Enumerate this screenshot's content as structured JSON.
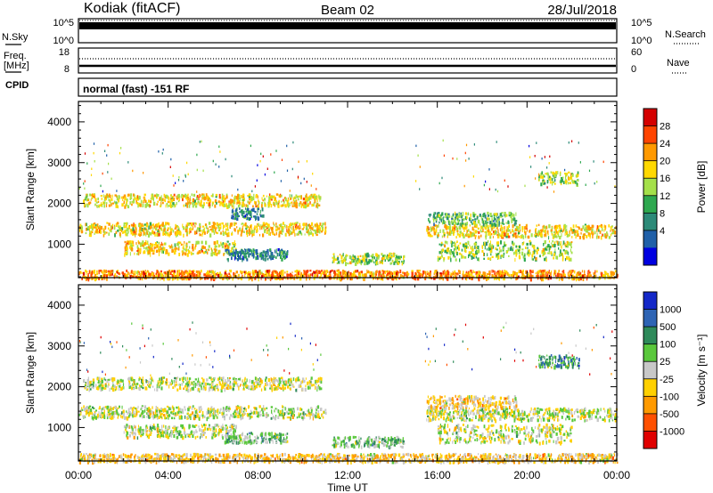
{
  "header": {
    "site": "Kodiak (fitACF)",
    "beam": "Beam 02",
    "date": "28/Jul/2018"
  },
  "status_panels": {
    "nsky_label": "N.Sky",
    "nsky_ticks": [
      "10^5",
      "10^0"
    ],
    "nsearch_label": "N.Search",
    "nsearch_ticks": [
      "10^5",
      "10^0"
    ],
    "freq_label_1": "Freq.",
    "freq_label_2": "[MHz]",
    "freq_ticks": [
      "18",
      "8"
    ],
    "nave_label": "Nave",
    "nave_ticks": [
      "60",
      "0"
    ],
    "cpid_label": "CPID",
    "cpid_value": "normal (fast) -151 RF"
  },
  "chart_data": [
    {
      "type": "heatmap",
      "quantity": "power",
      "ylabel": "Slant Range [km]",
      "ylim": [
        180,
        4500
      ],
      "yticks": [
        "4000",
        "3000",
        "2000",
        "1000"
      ],
      "xlabel": "Time UT",
      "xticks": [
        "00:00",
        "04:00",
        "08:00",
        "12:00",
        "16:00",
        "20:00",
        "00:00"
      ],
      "colorbar_label": "Power [dB]",
      "colorbar_ticks": [
        "28",
        "24",
        "20",
        "16",
        "12",
        "8",
        "4"
      ],
      "colorbar_colors": [
        "#d40000",
        "#ff4400",
        "#ff9900",
        "#ffd800",
        "#a4e04a",
        "#2ea84f",
        "#2c8a78",
        "#2060a8",
        "#0000e0"
      ],
      "echo_regions": [
        {
          "t_start": 0.2,
          "t_end": 10.8,
          "r_start": 1950,
          "r_end": 2250,
          "level": 3
        },
        {
          "t_start": 0.0,
          "t_end": 11.0,
          "r_start": 1250,
          "r_end": 1550,
          "level": 3
        },
        {
          "t_start": 2.0,
          "t_end": 7.0,
          "r_start": 780,
          "r_end": 1100,
          "level": 3
        },
        {
          "t_start": 6.5,
          "t_end": 9.3,
          "r_start": 650,
          "r_end": 900,
          "level": 6
        },
        {
          "t_start": 6.8,
          "t_end": 8.2,
          "r_start": 1650,
          "r_end": 1900,
          "level": 6
        },
        {
          "t_start": 11.3,
          "t_end": 14.5,
          "r_start": 550,
          "r_end": 800,
          "level": 4
        },
        {
          "t_start": 15.5,
          "t_end": 24.0,
          "r_start": 1200,
          "r_end": 1500,
          "level": 3
        },
        {
          "t_start": 16.0,
          "t_end": 22.0,
          "r_start": 650,
          "r_end": 1100,
          "level": 4
        },
        {
          "t_start": 15.5,
          "t_end": 19.5,
          "r_start": 1500,
          "r_end": 1800,
          "level": 5
        },
        {
          "t_start": 0.0,
          "t_end": 24.0,
          "r_start": 180,
          "r_end": 380,
          "level": 2
        },
        {
          "t_start": 20.5,
          "t_end": 22.3,
          "r_start": 2500,
          "r_end": 2800,
          "level": 4
        }
      ]
    },
    {
      "type": "heatmap",
      "quantity": "velocity",
      "ylabel": "Slant Range [km]",
      "ylim": [
        180,
        4500
      ],
      "yticks": [
        "4000",
        "3000",
        "2000",
        "1000"
      ],
      "xlabel": "Time UT",
      "xticks": [
        "00:00",
        "04:00",
        "08:00",
        "12:00",
        "16:00",
        "20:00",
        "00:00"
      ],
      "colorbar_label": "Velocity [m s⁻¹]",
      "colorbar_ticks": [
        "1000",
        "500",
        "100",
        "25",
        "-25",
        "-100",
        "-500",
        "-1000"
      ],
      "colorbar_colors": [
        "#1428c8",
        "#2e64b4",
        "#2e8a5a",
        "#5ac83c",
        "#c8c8c8",
        "#ffd000",
        "#ff9a00",
        "#ff5000",
        "#e00000"
      ],
      "echo_regions": [
        {
          "t_start": 0.2,
          "t_end": 10.8,
          "r_start": 1950,
          "r_end": 2250,
          "level": 4
        },
        {
          "t_start": 0.0,
          "t_end": 11.0,
          "r_start": 1250,
          "r_end": 1550,
          "level": 4
        },
        {
          "t_start": 2.0,
          "t_end": 7.0,
          "r_start": 780,
          "r_end": 1100,
          "level": 4
        },
        {
          "t_start": 6.5,
          "t_end": 9.3,
          "r_start": 650,
          "r_end": 900,
          "level": 3
        },
        {
          "t_start": 11.3,
          "t_end": 14.5,
          "r_start": 550,
          "r_end": 800,
          "level": 3
        },
        {
          "t_start": 15.5,
          "t_end": 24.0,
          "r_start": 1200,
          "r_end": 1500,
          "level": 4
        },
        {
          "t_start": 16.0,
          "t_end": 22.0,
          "r_start": 650,
          "r_end": 1100,
          "level": 4
        },
        {
          "t_start": 15.5,
          "t_end": 19.5,
          "r_start": 1500,
          "r_end": 1800,
          "level": 5
        },
        {
          "t_start": 0.0,
          "t_end": 24.0,
          "r_start": 180,
          "r_end": 380,
          "level": 5
        },
        {
          "t_start": 20.5,
          "t_end": 22.3,
          "r_start": 2500,
          "r_end": 2800,
          "level": 2
        }
      ]
    }
  ]
}
